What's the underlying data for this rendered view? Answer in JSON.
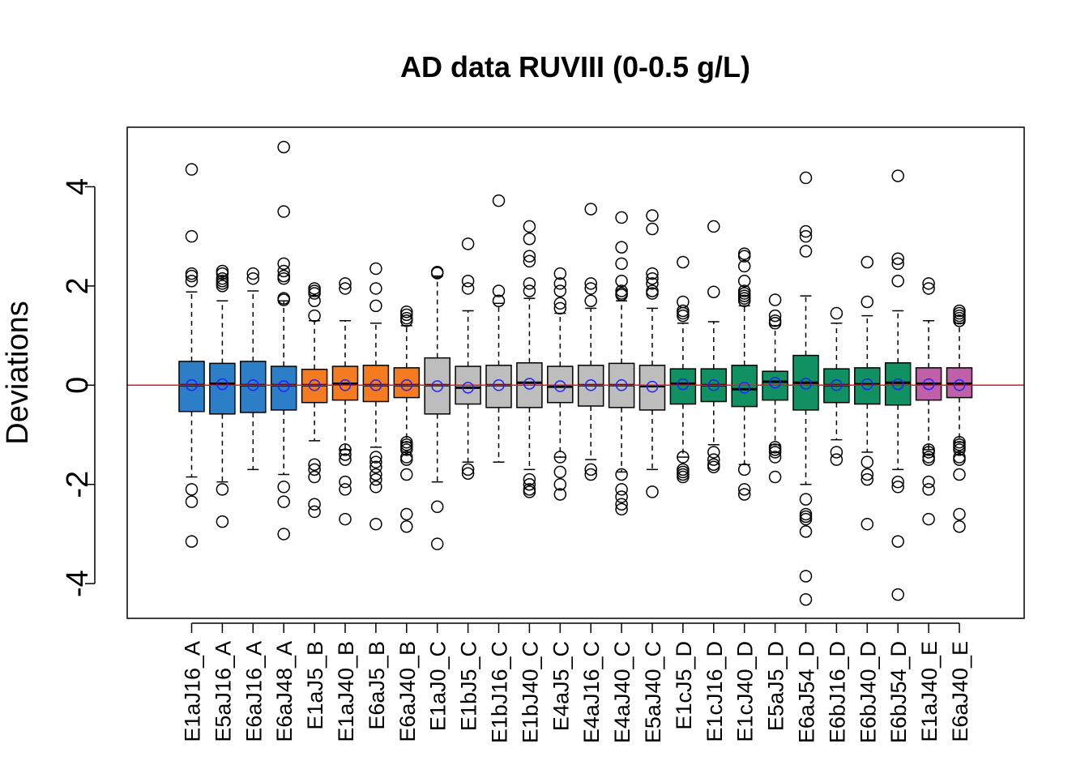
{
  "chart_data": {
    "type": "boxplot",
    "title": "AD data RUVIII (0-0.5 g/L)",
    "ylabel": "Deviations",
    "xlabel": "",
    "ylim": [
      -4.7,
      5.2
    ],
    "yticks": [
      -4,
      -2,
      0,
      2,
      4
    ],
    "reference_line": {
      "y": 0,
      "color": "#e31a1c"
    },
    "mean_marker_color": "#2020ff",
    "group_colors": {
      "A": "#2c7fc7",
      "B": "#f47b20",
      "C": "#bdbdbd",
      "D": "#119062",
      "E": "#c060a8"
    },
    "categories": [
      "E1aJ16_A",
      "E5aJ16_A",
      "E6aJ16_A",
      "E6aJ48_A",
      "E1aJ5_B",
      "E1aJ40_B",
      "E6aJ5_B",
      "E6aJ40_B",
      "E1aJ0_C",
      "E1bJ5_C",
      "E1bJ16_C",
      "E1bJ40_C",
      "E4aJ5_C",
      "E4aJ16_C",
      "E4aJ40_C",
      "E5aJ40_C",
      "E1cJ5_D",
      "E1cJ16_D",
      "E1cJ40_D",
      "E5aJ5_D",
      "E6aJ54_D",
      "E6bJ16_D",
      "E6bJ40_D",
      "E6bJ54_D",
      "E1aJ40_E",
      "E6aJ40_E"
    ],
    "boxes": [
      {
        "group": "A",
        "q1": -0.53,
        "median": 0.0,
        "q3": 0.48,
        "wlo": -1.85,
        "whi": 1.88,
        "mean": 0.0,
        "outliers": [
          4.35,
          3.0,
          2.25,
          2.2,
          2.1,
          -2.1,
          -2.35,
          -3.15
        ]
      },
      {
        "group": "A",
        "q1": -0.58,
        "median": 0.03,
        "q3": 0.44,
        "wlo": -1.95,
        "whi": 1.7,
        "mean": 0.02,
        "outliers": [
          2.3,
          2.25,
          2.15,
          2.1,
          2.05,
          2.0,
          -2.1,
          -2.75
        ]
      },
      {
        "group": "A",
        "q1": -0.55,
        "median": 0.0,
        "q3": 0.48,
        "wlo": -1.7,
        "whi": 1.9,
        "mean": 0.0,
        "outliers": [
          2.25,
          2.15
        ]
      },
      {
        "group": "A",
        "q1": -0.5,
        "median": 0.0,
        "q3": 0.38,
        "wlo": -1.8,
        "whi": 1.7,
        "mean": -0.02,
        "outliers": [
          4.8,
          3.5,
          2.45,
          2.3,
          2.2,
          2.15,
          1.75,
          1.72,
          -2.05,
          -2.35,
          -3.0
        ]
      },
      {
        "group": "B",
        "q1": -0.35,
        "median": 0.0,
        "q3": 0.32,
        "wlo": -1.12,
        "whi": 1.3,
        "mean": 0.0,
        "outliers": [
          1.95,
          1.9,
          1.85,
          1.7,
          1.4,
          -1.6,
          -1.7,
          -1.85,
          -2.4,
          -2.55
        ]
      },
      {
        "group": "B",
        "q1": -0.3,
        "median": 0.03,
        "q3": 0.38,
        "wlo": -1.3,
        "whi": 1.3,
        "mean": 0.0,
        "outliers": [
          2.05,
          1.95,
          -1.3,
          -1.4,
          -1.5,
          -1.95,
          -2.1,
          -2.7
        ]
      },
      {
        "group": "B",
        "q1": -0.33,
        "median": 0.0,
        "q3": 0.4,
        "wlo": -1.25,
        "whi": 1.25,
        "mean": 0.0,
        "outliers": [
          2.35,
          1.95,
          1.6,
          -1.45,
          -1.55,
          -1.65,
          -1.8,
          -1.9,
          -2.05,
          -2.8
        ]
      },
      {
        "group": "B",
        "q1": -0.25,
        "median": 0.0,
        "q3": 0.35,
        "wlo": -1.15,
        "whi": 1.2,
        "mean": 0.0,
        "outliers": [
          1.48,
          1.42,
          1.35,
          1.3,
          -1.15,
          -1.2,
          -1.25,
          -1.3,
          -1.45,
          -1.5,
          -1.8,
          -2.6,
          -2.85
        ]
      },
      {
        "group": "C",
        "q1": -0.58,
        "median": 0.0,
        "q3": 0.55,
        "wlo": -1.95,
        "whi": 2.2,
        "mean": -0.02,
        "outliers": [
          2.28,
          2.26,
          -2.45,
          -3.2
        ]
      },
      {
        "group": "C",
        "q1": -0.38,
        "median": -0.05,
        "q3": 0.38,
        "wlo": -1.55,
        "whi": 1.5,
        "mean": -0.05,
        "outliers": [
          2.85,
          2.1,
          1.95,
          -1.7,
          -1.78
        ]
      },
      {
        "group": "C",
        "q1": -0.45,
        "median": 0.0,
        "q3": 0.4,
        "wlo": -1.55,
        "whi": 1.65,
        "mean": 0.0,
        "outliers": [
          3.72,
          1.9,
          1.7
        ]
      },
      {
        "group": "C",
        "q1": -0.45,
        "median": 0.05,
        "q3": 0.45,
        "wlo": -1.7,
        "whi": 1.75,
        "mean": 0.03,
        "outliers": [
          3.2,
          2.95,
          2.6,
          2.5,
          2.05,
          1.9,
          -1.9,
          -2.0,
          -2.1,
          -2.15
        ]
      },
      {
        "group": "C",
        "q1": -0.35,
        "median": -0.03,
        "q3": 0.38,
        "wlo": -1.45,
        "whi": 1.45,
        "mean": -0.02,
        "outliers": [
          2.25,
          2.05,
          1.9,
          1.65,
          1.55,
          -1.45,
          -1.75,
          -2.0,
          -2.2
        ]
      },
      {
        "group": "C",
        "q1": -0.42,
        "median": 0.0,
        "q3": 0.4,
        "wlo": -1.5,
        "whi": 1.55,
        "mean": 0.0,
        "outliers": [
          3.55,
          2.05,
          1.95,
          1.7,
          -1.7,
          -1.8
        ]
      },
      {
        "group": "C",
        "q1": -0.45,
        "median": 0.0,
        "q3": 0.44,
        "wlo": -1.75,
        "whi": 1.7,
        "mean": 0.0,
        "outliers": [
          3.38,
          2.78,
          2.45,
          2.1,
          1.9,
          1.85,
          1.82,
          -1.8,
          -2.1,
          -2.25,
          -2.4,
          -2.5
        ]
      },
      {
        "group": "C",
        "q1": -0.5,
        "median": -0.02,
        "q3": 0.4,
        "wlo": -1.7,
        "whi": 1.55,
        "mean": -0.03,
        "outliers": [
          3.42,
          3.15,
          2.25,
          2.15,
          2.05,
          1.9,
          1.85,
          -2.15
        ]
      },
      {
        "group": "D",
        "q1": -0.38,
        "median": 0.03,
        "q3": 0.33,
        "wlo": -1.45,
        "whi": 1.25,
        "mean": 0.02,
        "outliers": [
          2.48,
          1.68,
          1.5,
          1.45,
          1.4,
          -1.45,
          -1.7,
          -1.75,
          -1.8,
          -1.85
        ]
      },
      {
        "group": "D",
        "q1": -0.33,
        "median": 0.0,
        "q3": 0.33,
        "wlo": -1.2,
        "whi": 1.28,
        "mean": 0.0,
        "outliers": [
          3.2,
          1.88,
          -1.35,
          -1.5,
          -1.6,
          -1.65
        ]
      },
      {
        "group": "D",
        "q1": -0.43,
        "median": -0.08,
        "q3": 0.4,
        "wlo": -1.6,
        "whi": 1.6,
        "mean": -0.05,
        "outliers": [
          2.65,
          2.6,
          2.4,
          2.1,
          1.9,
          1.85,
          1.8,
          1.75,
          1.7,
          -1.7,
          -2.1,
          -2.2
        ]
      },
      {
        "group": "D",
        "q1": -0.3,
        "median": 0.07,
        "q3": 0.28,
        "wlo": -1.2,
        "whi": 1.2,
        "mean": 0.05,
        "outliers": [
          1.72,
          1.4,
          1.3,
          1.25,
          -1.25,
          -1.3,
          -1.35,
          -1.45,
          -1.85
        ]
      },
      {
        "group": "D",
        "q1": -0.5,
        "median": 0.05,
        "q3": 0.6,
        "wlo": -2.0,
        "whi": 1.8,
        "mean": 0.03,
        "outliers": [
          4.18,
          3.1,
          3.0,
          2.7,
          -2.3,
          -2.6,
          -2.65,
          -2.7,
          -2.95,
          -3.85,
          -4.32
        ]
      },
      {
        "group": "D",
        "q1": -0.35,
        "median": 0.0,
        "q3": 0.33,
        "wlo": -1.1,
        "whi": 1.25,
        "mean": 0.0,
        "outliers": [
          1.45,
          -1.35,
          -1.5
        ]
      },
      {
        "group": "D",
        "q1": -0.38,
        "median": 0.02,
        "q3": 0.35,
        "wlo": -1.35,
        "whi": 1.4,
        "mean": 0.02,
        "outliers": [
          2.48,
          1.68,
          -1.55,
          -1.8,
          -1.9,
          -2.8
        ]
      },
      {
        "group": "D",
        "q1": -0.4,
        "median": 0.05,
        "q3": 0.45,
        "wlo": -1.7,
        "whi": 1.5,
        "mean": 0.02,
        "outliers": [
          4.22,
          2.55,
          2.45,
          2.1,
          -1.95,
          -2.05,
          -3.15,
          -4.22
        ]
      },
      {
        "group": "E",
        "q1": -0.3,
        "median": 0.03,
        "q3": 0.35,
        "wlo": -1.3,
        "whi": 1.3,
        "mean": 0.02,
        "outliers": [
          2.05,
          1.95,
          -1.3,
          -1.35,
          -1.45,
          -1.5,
          -1.95,
          -2.1,
          -2.7
        ]
      },
      {
        "group": "E",
        "q1": -0.25,
        "median": 0.03,
        "q3": 0.35,
        "wlo": -1.15,
        "whi": 1.25,
        "mean": 0.0,
        "outliers": [
          1.5,
          1.45,
          1.4,
          1.35,
          1.3,
          -1.15,
          -1.2,
          -1.25,
          -1.3,
          -1.45,
          -1.5,
          -1.8,
          -2.6,
          -2.85
        ]
      }
    ]
  }
}
